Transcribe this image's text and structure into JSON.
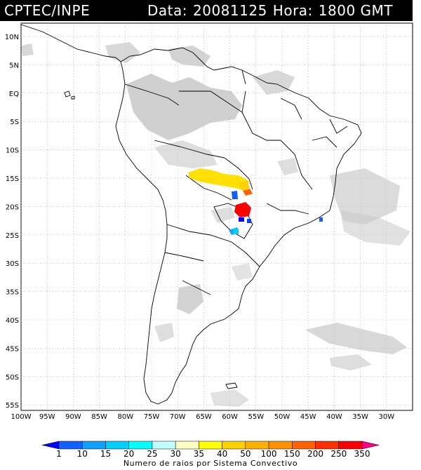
{
  "header": {
    "agency": "CPTEC/INPE",
    "date_label": "Data:",
    "date_value": "20081125",
    "time_label": "Hora:",
    "time_value": "1800 GMT"
  },
  "map": {
    "lat_labels": [
      "10N",
      "5N",
      "EQ",
      "5S",
      "10S",
      "15S",
      "20S",
      "25S",
      "30S",
      "35S",
      "40S",
      "45S",
      "50S",
      "55S"
    ],
    "lon_labels": [
      "100W",
      "95W",
      "90W",
      "85W",
      "80W",
      "75W",
      "70W",
      "65W",
      "60W",
      "55W",
      "50W",
      "45W",
      "40W",
      "35W",
      "30W"
    ],
    "colors": {
      "land_outline": "#000000",
      "cloud": "#c8c8c8",
      "grid": "#888888"
    }
  },
  "colorbar": {
    "labels": [
      "1",
      "10",
      "15",
      "20",
      "25",
      "30",
      "35",
      "40",
      "50",
      "100",
      "150",
      "200",
      "250",
      "350"
    ],
    "colors": [
      "#0000ff",
      "#1060ff",
      "#10a0ff",
      "#00d0ff",
      "#00ffff",
      "#c0ffff",
      "#ffffc0",
      "#ffff00",
      "#ffd000",
      "#ffb000",
      "#ff9000",
      "#ff6000",
      "#ff3000",
      "#ff0000",
      "#ff0080"
    ],
    "title": "Numero de raios por Sistema Convectivo"
  }
}
